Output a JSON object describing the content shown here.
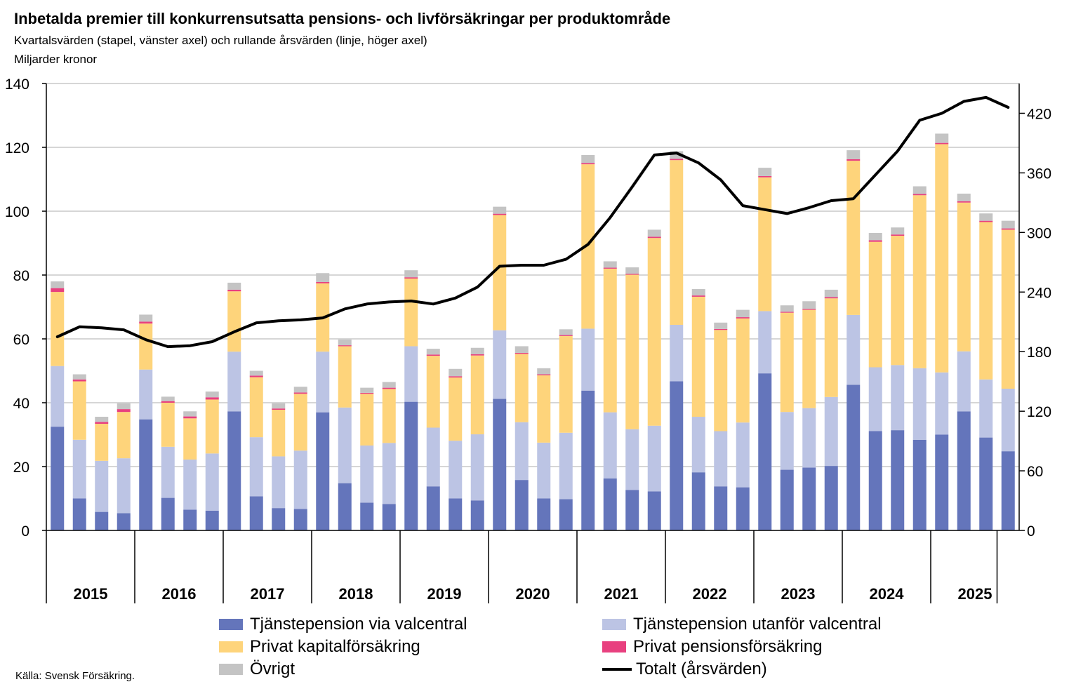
{
  "title": "Inbetalda premier till konkurrensutsatta pensions- och livförsäkringar per produktområde",
  "subtitle": "Kvartalsvärden (stapel, vänster axel) och rullande årsvärden (linje, höger axel)",
  "unit": "Miljarder kronor",
  "source": "Källa: Svensk Försäkring.",
  "colors": {
    "tjanste_valcentral": "#6475bb",
    "tjanste_utanfor": "#bcc4e4",
    "privat_kapital": "#fed47b",
    "privat_pension": "#e8407f",
    "ovrigt": "#c4c4c4",
    "totalt": "#000000",
    "grid": "#c8c8c8"
  },
  "chart_data": {
    "type": "bar",
    "stacked": true,
    "title": "Inbetalda premier till konkurrensutsatta pensions- och livförsäkringar per produktområde",
    "xlabel": "",
    "ylabel": "Miljarder kronor",
    "ylim": [
      0,
      140
    ],
    "yticks": [
      "0",
      "20",
      "40",
      "60",
      "80",
      "100",
      "120",
      "140"
    ],
    "y2lim": [
      0,
      450
    ],
    "y2ticks": [
      "0",
      "60",
      "120",
      "180",
      "240",
      "300",
      "360",
      "420"
    ],
    "years": [
      "2015",
      "2016",
      "2017",
      "2018",
      "2019",
      "2020",
      "2021",
      "2022",
      "2023",
      "2024",
      "2025"
    ],
    "quarters_per_year": [
      4,
      4,
      4,
      4,
      4,
      4,
      4,
      4,
      4,
      4,
      3
    ],
    "series": [
      {
        "name": "Tjänstepension via valcentral",
        "color_key": "tjanste_valcentral",
        "values": [
          32.5,
          10,
          5.8,
          5.4,
          34.8,
          10.2,
          6.5,
          6.2,
          37.3,
          10.7,
          7,
          6.7,
          37,
          14.8,
          8.7,
          8.3,
          40.3,
          13.8,
          10,
          9.4,
          41.2,
          15.8,
          10,
          9.8,
          43.8,
          16.3,
          12.7,
          12.2,
          46.7,
          18.2,
          13.8,
          13.5,
          49.2,
          19,
          19.7,
          20.2,
          45.6,
          31.1,
          31.4,
          28.4,
          30,
          37.3,
          29.1,
          24.8
        ]
      },
      {
        "name": "Tjänstepension utanför valcentral",
        "color_key": "tjanste_utanfor",
        "values": [
          19,
          18.4,
          16,
          17.2,
          15.6,
          16,
          15.7,
          17.9,
          18.7,
          18.5,
          16.2,
          18.3,
          19,
          23.7,
          17.9,
          19.1,
          17.4,
          18.4,
          18.1,
          20.7,
          21.5,
          18.1,
          17.5,
          20.8,
          19.4,
          20.7,
          19,
          20.6,
          17.7,
          17.4,
          17.3,
          20.3,
          19.5,
          18.1,
          18.6,
          21.6,
          21.9,
          20,
          20.4,
          22.4,
          19.5,
          18.8,
          18.2,
          19.6
        ]
      },
      {
        "name": "Privat kapitalförsäkring",
        "color_key": "privat_kapital",
        "values": [
          23.2,
          18.3,
          11.6,
          14.5,
          14.4,
          13.8,
          12.9,
          16.9,
          18.9,
          18.8,
          14.6,
          17.8,
          21.4,
          19.2,
          16.2,
          16.9,
          21.2,
          22.5,
          19.8,
          24.7,
          36.1,
          21.4,
          21.1,
          30.3,
          51.5,
          45,
          48.4,
          58.8,
          51.6,
          37.6,
          31.7,
          32.6,
          41.9,
          31.1,
          30.8,
          30.9,
          48.3,
          39.3,
          40.5,
          54.2,
          71.5,
          46.6,
          49.3,
          49.8
        ]
      },
      {
        "name": "Privat pensionsförsäkring",
        "color_key": "privat_pension",
        "values": [
          1.2,
          0.6,
          0.6,
          0.9,
          0.6,
          0.5,
          0.6,
          0.7,
          0.5,
          0.5,
          0.4,
          0.4,
          0.4,
          0.3,
          0.3,
          0.4,
          0.4,
          0.4,
          0.4,
          0.4,
          0.4,
          0.3,
          0.3,
          0.3,
          0.4,
          0.3,
          0.3,
          0.4,
          0.4,
          0.4,
          0.3,
          0.4,
          0.4,
          0.3,
          0.3,
          0.4,
          0.5,
          0.5,
          0.4,
          0.4,
          0.4,
          0.4,
          0.4,
          0.4
        ]
      },
      {
        "name": "Övrigt",
        "color_key": "ovrigt",
        "values": [
          2.1,
          1.6,
          1.6,
          1.8,
          2.2,
          1.4,
          1.6,
          1.8,
          2.2,
          1.5,
          1.6,
          1.8,
          2.8,
          1.8,
          1.6,
          1.8,
          2.2,
          1.8,
          2.3,
          2,
          2.2,
          2.1,
          1.9,
          1.8,
          2.5,
          2,
          2,
          2.2,
          2.4,
          2,
          2,
          2.3,
          2.6,
          2,
          2.4,
          2.3,
          2.8,
          2.3,
          2.2,
          2.4,
          2.9,
          2.4,
          2.3,
          2.4
        ]
      }
    ],
    "line": {
      "name": "Totalt (årsvärden)",
      "axis": "right",
      "color_key": "totalt",
      "values": [
        195,
        205,
        204,
        202,
        192,
        185,
        186,
        190,
        200,
        209,
        211,
        212,
        214,
        223,
        228,
        230,
        231,
        228,
        234,
        245,
        266,
        267,
        267,
        273,
        288,
        315,
        346,
        378,
        380,
        370,
        353,
        327,
        323,
        319,
        325,
        332,
        334,
        358,
        382,
        413,
        420,
        432,
        436,
        426
      ]
    }
  },
  "legend": {
    "items": [
      {
        "label": "Tjänstepension via valcentral",
        "color_key": "tjanste_valcentral",
        "kind": "box"
      },
      {
        "label": "Tjänstepension utanför valcentral",
        "color_key": "tjanste_utanfor",
        "kind": "box"
      },
      {
        "label": "Privat kapitalförsäkring",
        "color_key": "privat_kapital",
        "kind": "box"
      },
      {
        "label": "Privat pensionsförsäkring",
        "color_key": "privat_pension",
        "kind": "box"
      },
      {
        "label": "Övrigt",
        "color_key": "ovrigt",
        "kind": "box"
      },
      {
        "label": "Totalt (årsvärden)",
        "color_key": "totalt",
        "kind": "line"
      }
    ]
  }
}
